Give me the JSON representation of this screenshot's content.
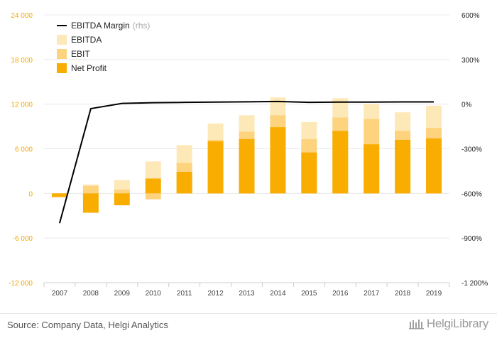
{
  "chart_data": {
    "type": "bar",
    "categories": [
      "2007",
      "2008",
      "2009",
      "2010",
      "2011",
      "2012",
      "2013",
      "2014",
      "2015",
      "2016",
      "2017",
      "2018",
      "2019"
    ],
    "series": [
      {
        "name": "EBITDA",
        "type": "bar",
        "values": [
          -300,
          1200,
          1800,
          4300,
          6500,
          9400,
          10500,
          12900,
          9600,
          12800,
          12000,
          10900,
          11800
        ],
        "color": "#fde8b8"
      },
      {
        "name": "EBIT",
        "type": "bar",
        "values": [
          -400,
          1000,
          500,
          -800,
          4100,
          7200,
          8300,
          10500,
          7300,
          10200,
          10000,
          8400,
          8800
        ],
        "color": "#fdd37e"
      },
      {
        "name": "Net Profit",
        "type": "bar",
        "values": [
          -500,
          -2600,
          -1600,
          2000,
          2900,
          7000,
          7300,
          8900,
          5500,
          8400,
          6600,
          7200,
          7400
        ],
        "color": "#f9ad00"
      },
      {
        "name": "EBITDA Margin",
        "type": "line",
        "axis": "right",
        "values": [
          -800,
          -30,
          5,
          10,
          12,
          14,
          16,
          18,
          12,
          14,
          14,
          15,
          15
        ],
        "color": "#000000"
      }
    ],
    "legend": [
      {
        "label": "EBITDA Margin",
        "suffix": "(rhs)",
        "kind": "line",
        "color": "#000000"
      },
      {
        "label": "EBITDA",
        "kind": "box",
        "color": "#fde8b8"
      },
      {
        "label": "EBIT",
        "kind": "box",
        "color": "#fdd37e"
      },
      {
        "label": "Net Profit",
        "kind": "box",
        "color": "#f9ad00"
      }
    ],
    "legend_position": "top-left",
    "ylim": [
      -12000,
      24000
    ],
    "yticks": [
      -12000,
      -6000,
      0,
      6000,
      12000,
      18000,
      24000
    ],
    "ytick_labels": [
      "-12 000",
      "-6 000",
      "0",
      "6 000",
      "12 000",
      "18 000",
      "24 000"
    ],
    "y2lim": [
      -1200,
      600
    ],
    "y2ticks": [
      -1200,
      -900,
      -600,
      -300,
      0,
      300,
      600
    ],
    "y2tick_labels": [
      "-1 200%",
      "-900%",
      "-600%",
      "-300%",
      "0%",
      "300%",
      "600%"
    ],
    "left_axis_color": "#f5a800",
    "grid": true
  },
  "footer": {
    "source": "Source: Company Data, Helgi Analytics",
    "logo": "HelgiLibrary"
  }
}
